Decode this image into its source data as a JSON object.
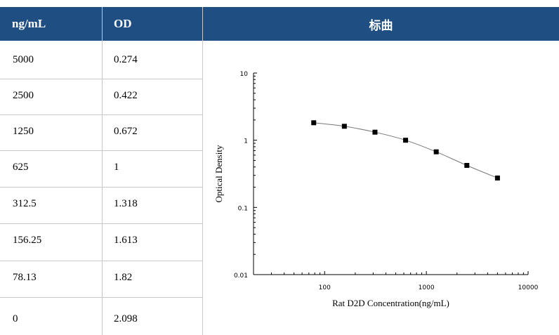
{
  "table": {
    "headers": [
      "ng/mL",
      "OD",
      "标曲"
    ],
    "rows": [
      {
        "conc": "5000",
        "od": "0.274"
      },
      {
        "conc": "2500",
        "od": "0.422"
      },
      {
        "conc": "1250",
        "od": "0.672"
      },
      {
        "conc": "625",
        "od": "1"
      },
      {
        "conc": "312.5",
        "od": "1.318"
      },
      {
        "conc": "156.25",
        "od": "1.613"
      },
      {
        "conc": "78.13",
        "od": "1.82"
      },
      {
        "conc": "0",
        "od": "2.098"
      }
    ]
  },
  "chart_data": {
    "type": "scatter",
    "title": "",
    "xlabel": "Rat D2D Concentration(ng/mL)",
    "ylabel": "Optical Density",
    "xscale": "log",
    "yscale": "log",
    "xlim": [
      20,
      10000
    ],
    "ylim": [
      0.01,
      10
    ],
    "xticks": [
      "100",
      "1000",
      "10000"
    ],
    "yticks": [
      "0.01",
      "0.1",
      "1",
      "10"
    ],
    "grid": false,
    "legend": "none",
    "marker_color": "#000000",
    "line_color": "#777777",
    "series": [
      {
        "x": [
          78.13,
          156.25,
          312.5,
          625,
          1250,
          2500,
          5000
        ],
        "y": [
          1.82,
          1.613,
          1.318,
          1.0,
          0.672,
          0.422,
          0.274
        ]
      }
    ]
  }
}
